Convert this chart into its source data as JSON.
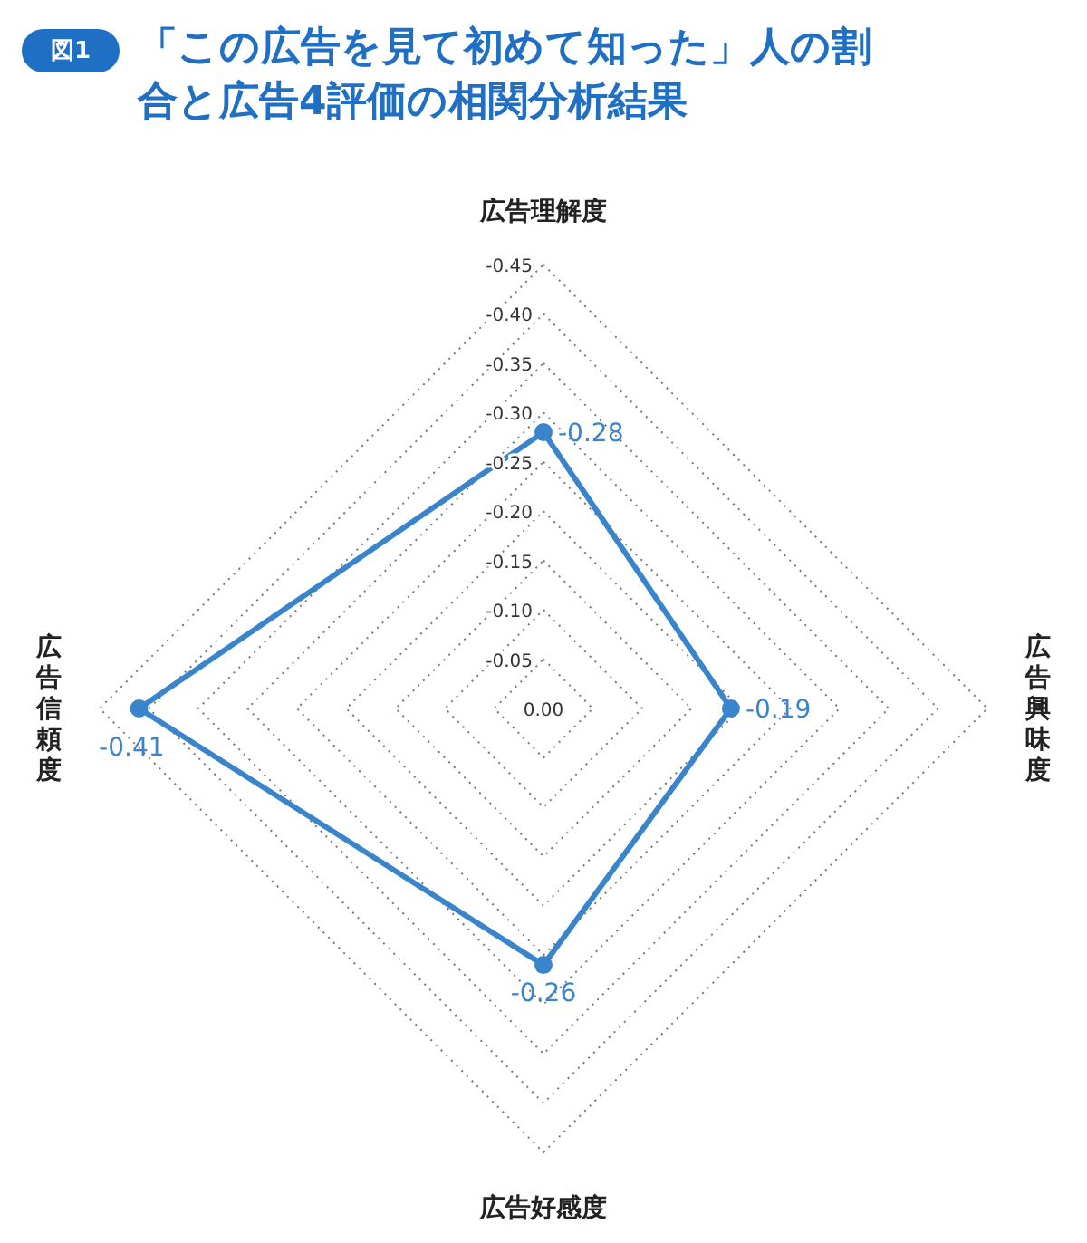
{
  "chart_data": {
    "type": "radar",
    "title": "「この広告を見て初めて知った」人の割合と広告4評価の相関分析結果",
    "annotations": [
      "図1"
    ],
    "categories": [
      "広告理解度",
      "広告興味度",
      "広告好感度",
      "広告信頼度"
    ],
    "series": [
      {
        "color": "#3a84cc",
        "values": [
          -0.28,
          -0.19,
          -0.26,
          -0.41
        ]
      }
    ],
    "ylim": [
      0,
      -0.45
    ],
    "yticks": [
      {
        "value": 0,
        "label": "0.00"
      },
      {
        "value": -0.05,
        "label": "-0.05"
      },
      {
        "value": -0.1,
        "label": "-0.10"
      },
      {
        "value": -0.15,
        "label": "-0.15"
      },
      {
        "value": -0.2,
        "label": "-0.20"
      },
      {
        "value": -0.25,
        "label": "-0.25"
      },
      {
        "value": -0.3,
        "label": "-0.30"
      },
      {
        "value": -0.35,
        "label": "-0.35"
      },
      {
        "value": -0.4,
        "label": "-0.40"
      },
      {
        "value": -0.45,
        "label": "-0.45"
      }
    ],
    "grid": true,
    "marker": "circle",
    "line_style": "solid",
    "data_labels": true,
    "legend": false
  }
}
